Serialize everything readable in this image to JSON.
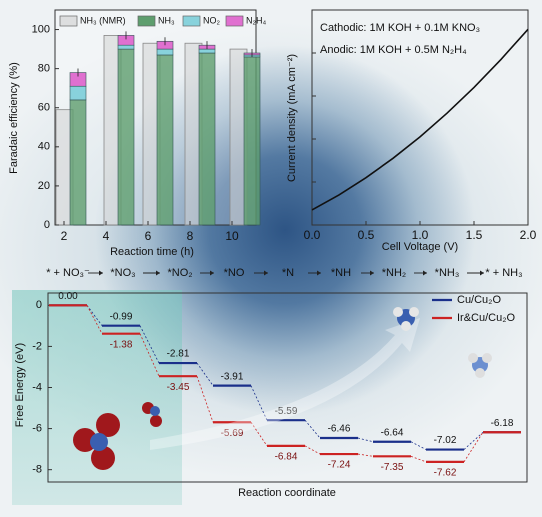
{
  "chart_data": [
    {
      "type": "bar",
      "ylabel": "Faradaic efficiency (%)",
      "xlabel": "Reaction time (h)",
      "ylim": [
        0,
        110
      ],
      "yticks": [
        "0",
        "20",
        "40",
        "60",
        "80",
        "100"
      ],
      "xticks": [
        "2",
        "4",
        "6",
        "8",
        "10"
      ],
      "categories": [
        "2",
        "4",
        "6",
        "8",
        "10"
      ],
      "series": [
        {
          "name": "NH₃ (NMR)",
          "values": [
            59,
            97,
            93,
            93,
            90
          ],
          "color": "#d4d4d4"
        },
        {
          "name": "NH₃",
          "values": [
            64,
            90,
            87,
            88,
            86
          ],
          "color": "#5e9e6e"
        },
        {
          "name": "NO₂",
          "values": [
            7,
            2,
            3,
            2,
            1
          ],
          "color": "#88d2dc"
        },
        {
          "name": "N₂H₄",
          "values": [
            7,
            5,
            4,
            2,
            1
          ],
          "color": "#e070d0"
        }
      ]
    },
    {
      "type": "line",
      "ylabel": "Current density (mA cm⁻²)",
      "xlabel": "Cell Voltage (V)",
      "xlim": [
        0,
        2.0
      ],
      "ylim": [
        0,
        100
      ],
      "xticks": [
        "0.0",
        "0.5",
        "1.0",
        "1.5",
        "2.0"
      ],
      "yticks": [
        "0",
        "20",
        "40",
        "60",
        "80",
        "100"
      ],
      "annotations": [
        "Cathodic: 1M KOH + 0.1M KNO₃",
        "Anodic: 1M KOH + 0.5M N₂H₄"
      ],
      "series": [
        {
          "x": [
            0.0,
            0.25,
            0.5,
            0.75,
            1.0,
            1.25,
            1.5,
            1.75,
            2.0
          ],
          "y": [
            7,
            14,
            22,
            31,
            41,
            52,
            64,
            77,
            91
          ]
        }
      ]
    },
    {
      "type": "line",
      "subtype": "energy-step diagram",
      "ylabel": "Free Energy (eV)",
      "xlabel": "Reaction coordinate",
      "ylim": [
        -8.6,
        0.6
      ],
      "yticks": [
        "0",
        "-2",
        "-4",
        "-6",
        "-8"
      ],
      "intermediates": [
        "* + NO₃⁻",
        "*NO₃",
        "*NO₂",
        "*NO",
        "*N",
        "*NH",
        "*NH₂",
        "*NH₃",
        "* + NH₃"
      ],
      "legend": [
        "Cu/Cu₂O",
        "Ir&Cu/Cu₂O"
      ],
      "series": [
        {
          "name": "Cu/Cu₂O",
          "color": "#1a2f8a",
          "values": [
            0.0,
            -0.99,
            -2.81,
            -3.91,
            -5.59,
            -6.46,
            -6.64,
            -7.02,
            -6.18
          ],
          "labels": [
            "0.00",
            "-0.99",
            "-2.81",
            "-3.91",
            "-5.59",
            "-6.46",
            "-6.64",
            "-7.02",
            "-6.18"
          ]
        },
        {
          "name": "Ir&Cu/Cu₂O",
          "color": "#cc2222",
          "values": [
            0.0,
            -1.38,
            -3.45,
            -5.69,
            -6.84,
            -7.24,
            -7.35,
            -7.62,
            -6.18
          ],
          "labels": [
            "",
            "-1.38",
            "-3.45",
            "-5.69",
            "-6.84",
            "-7.24",
            "-7.35",
            "-7.62",
            ""
          ]
        }
      ]
    }
  ]
}
